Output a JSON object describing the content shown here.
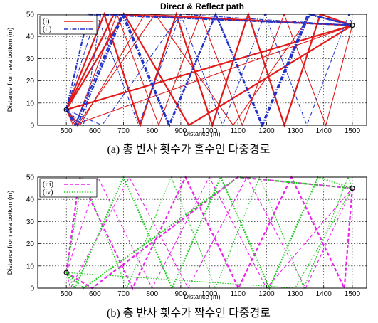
{
  "chart_data": [
    {
      "type": "line",
      "title": "Direct & Reflect path",
      "xlabel": "Distance (m)",
      "ylabel": "Distance from sea bottom (m)",
      "xlim": [
        400,
        1550
      ],
      "ylim": [
        0,
        50
      ],
      "xticks": [
        500,
        600,
        700,
        800,
        900,
        1000,
        1100,
        1200,
        1300,
        1400,
        1500
      ],
      "yticks": [
        0,
        10,
        20,
        30,
        40,
        50
      ],
      "grid": true,
      "legend_position": "top-left",
      "caption": "(a) 총 반사 횟수가 홀수인 다중경로",
      "source_point": [
        500,
        7
      ],
      "receiver_point": [
        1500,
        45
      ],
      "series": [
        {
          "name": "(i)",
          "color": "#e31a1a",
          "style": "solid",
          "paths": [
            {
              "x": [
                500,
                1500
              ],
              "y": [
                7,
                45
              ]
            },
            {
              "x": [
                500,
                523.8,
                1500
              ],
              "y": [
                7,
                0,
                45
              ]
            },
            {
              "x": [
                500,
                666.7,
                1500
              ],
              "y": [
                7,
                50,
                45
              ]
            },
            {
              "x": [
                500,
                547.6,
                773.8,
                1500
              ],
              "y": [
                7,
                0,
                50,
                45
              ]
            },
            {
              "x": [
                500,
                702.4,
                928.6,
                1500
              ],
              "y": [
                7,
                50,
                0,
                45
              ]
            },
            {
              "x": [
                500,
                530.9,
                677.0,
                823.2,
                969.3,
                1115.4,
                1261.6,
                1407.7,
                1500
              ],
              "y": [
                7,
                0,
                50,
                0,
                50,
                0,
                50,
                0,
                45
              ]
            },
            {
              "x": [
                500,
                632.3,
                758.3,
                884.3,
                1010.3,
                1136.3,
                1262.3,
                1388.3,
                1500
              ],
              "y": [
                7,
                50,
                0,
                50,
                0,
                50,
                0,
                50,
                45
              ]
            },
            {
              "x": [
                500,
                538.3,
                810.8,
                1083.3,
                1355.8,
                1500
              ],
              "y": [
                7,
                0,
                50,
                0,
                50,
                45
              ]
            }
          ]
        },
        {
          "name": "(ii)",
          "color": "#2233cc",
          "style": "dashdot",
          "paths": [
            {
              "x": [
                500,
                576.9,
                1500
              ],
              "y": [
                7,
                50,
                45
              ]
            },
            {
              "x": [
                500,
                560.0,
                620.0,
                1500
              ],
              "y": [
                7,
                0,
                50,
                45
              ]
            },
            {
              "x": [
                500,
                538.9,
                700.0,
                861.1,
                1022.2,
                1183.3,
                1344.4,
                1500
              ],
              "y": [
                7,
                0,
                50,
                0,
                50,
                0,
                50,
                45
              ]
            },
            {
              "x": [
                500,
                605.8,
                752.8,
                899.8,
                1046.8,
                1193.8,
                1340.8,
                1487.8,
                1500
              ],
              "y": [
                7,
                50,
                0,
                50,
                0,
                50,
                0,
                50,
                45
              ]
            },
            {
              "x": [
                500,
                530.6,
                694.6,
                858.6,
                1022.6,
                1186.6,
                1350.6,
                1500
              ],
              "y": [
                7,
                0,
                50,
                0,
                50,
                0,
                50,
                45
              ]
            },
            {
              "x": [
                500,
                625.0,
                900.0,
                1500
              ],
              "y": [
                7,
                0,
                50,
                45
              ]
            }
          ]
        }
      ]
    },
    {
      "type": "line",
      "title": "",
      "xlabel": "Distance (m)",
      "ylabel": "Distance from sea bottom (m)",
      "xlim": [
        400,
        1550
      ],
      "ylim": [
        0,
        50
      ],
      "xticks": [
        500,
        600,
        700,
        800,
        900,
        1000,
        1100,
        1200,
        1300,
        1400,
        1500
      ],
      "yticks": [
        0,
        10,
        20,
        30,
        40,
        50
      ],
      "grid": true,
      "legend_position": "top-left",
      "caption": "(b) 총 반사 횟수가 짝수인 다중경로",
      "source_point": [
        500,
        7
      ],
      "receiver_point": [
        1500,
        45
      ],
      "series": [
        {
          "name": "(iii)",
          "color": "#ee22ee",
          "style": "dashed",
          "paths": [
            {
              "x": [
                500,
                546.3,
                731.5,
                916.7,
                1101.9,
                1287.0,
                1472.2,
                1500
              ],
              "y": [
                7,
                50,
                0,
                50,
                0,
                50,
                0,
                45
              ]
            },
            {
              "x": [
                500,
                514.4,
                720.0,
                925.6,
                1131.2,
                1336.8,
                1500
              ],
              "y": [
                7,
                0,
                50,
                0,
                50,
                0,
                45
              ]
            },
            {
              "x": [
                500,
                590.0,
                1100.0,
                1500
              ],
              "y": [
                7,
                0,
                50,
                45
              ]
            },
            {
              "x": [
                500,
                610.0,
                800.0,
                1000.0,
                1200.0,
                1500
              ],
              "y": [
                7,
                50,
                0,
                50,
                0,
                45
              ]
            }
          ]
        },
        {
          "name": "(iv)",
          "color": "#22cc22",
          "style": "dotted",
          "paths": [
            {
              "x": [
                500,
                530.0,
                700.0,
                870.0,
                1040.0,
                1210.0,
                1380.0,
                1500
              ],
              "y": [
                7,
                0,
                50,
                0,
                50,
                0,
                50,
                45
              ]
            },
            {
              "x": [
                500,
                556.7,
                711.5,
                866.3,
                1021.1,
                1175.9,
                1330.7,
                1485.5,
                1500
              ],
              "y": [
                7,
                50,
                0,
                50,
                0,
                50,
                0,
                50,
                45
              ]
            },
            {
              "x": [
                500,
                560.0,
                1100.0,
                1500
              ],
              "y": [
                7,
                0,
                50,
                45
              ]
            },
            {
              "x": [
                500,
                1300.0,
                1500
              ],
              "y": [
                7,
                0,
                45
              ]
            }
          ]
        }
      ]
    }
  ]
}
